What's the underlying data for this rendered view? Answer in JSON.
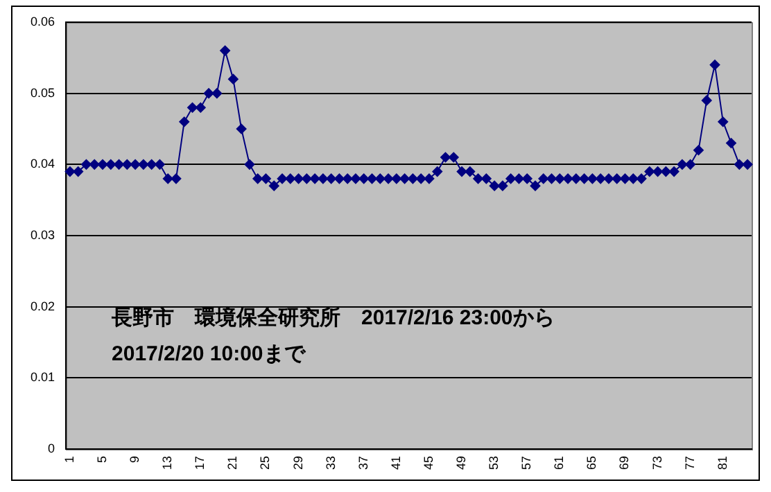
{
  "chart_data": {
    "type": "line",
    "categories": [
      "1",
      null,
      null,
      null,
      "5",
      null,
      null,
      null,
      "9",
      null,
      null,
      null,
      "13",
      null,
      null,
      null,
      "17",
      null,
      null,
      null,
      "21",
      null,
      null,
      null,
      "25",
      null,
      null,
      null,
      "29",
      null,
      null,
      null,
      "33",
      null,
      null,
      null,
      "37",
      null,
      null,
      null,
      "41",
      null,
      null,
      null,
      "45",
      null,
      null,
      null,
      "49",
      null,
      null,
      null,
      "53",
      null,
      null,
      null,
      "57",
      null,
      null,
      null,
      "61",
      null,
      null,
      null,
      "65",
      null,
      null,
      null,
      "69",
      null,
      null,
      null,
      "73",
      null,
      null,
      null,
      "77",
      null,
      null,
      null,
      "81",
      null,
      null,
      null
    ],
    "series": [
      {
        "color": "#000080",
        "values": [
          0.039,
          0.039,
          0.04,
          0.04,
          0.04,
          0.04,
          0.04,
          0.04,
          0.04,
          0.04,
          0.04,
          0.04,
          0.038,
          0.038,
          0.046,
          0.048,
          0.048,
          0.05,
          0.05,
          0.056,
          0.052,
          0.045,
          0.04,
          0.038,
          0.038,
          0.037,
          0.038,
          0.038,
          0.038,
          0.038,
          0.038,
          0.038,
          0.038,
          0.038,
          0.038,
          0.038,
          0.038,
          0.038,
          0.038,
          0.038,
          0.038,
          0.038,
          0.038,
          0.038,
          0.038,
          0.039,
          0.041,
          0.041,
          0.039,
          0.039,
          0.038,
          0.038,
          0.037,
          0.037,
          0.038,
          0.038,
          0.038,
          0.037,
          0.038,
          0.038,
          0.038,
          0.038,
          0.038,
          0.038,
          0.038,
          0.038,
          0.038,
          0.038,
          0.038,
          0.038,
          0.038,
          0.039,
          0.039,
          0.039,
          0.039,
          0.04,
          0.04,
          0.042,
          0.049,
          0.054,
          0.046,
          0.043,
          0.04,
          0.04
        ]
      }
    ],
    "ylim": [
      0,
      0.06
    ],
    "yticks": [
      0,
      0.01,
      0.02,
      0.03,
      0.04,
      0.05,
      0.06
    ],
    "grid": "y",
    "marker": "diamond",
    "line_style": "solid",
    "annotations": [
      "長野市　環境保全研究所　2017/2/16 23:00から",
      "2017/2/20 10:00まで"
    ]
  }
}
